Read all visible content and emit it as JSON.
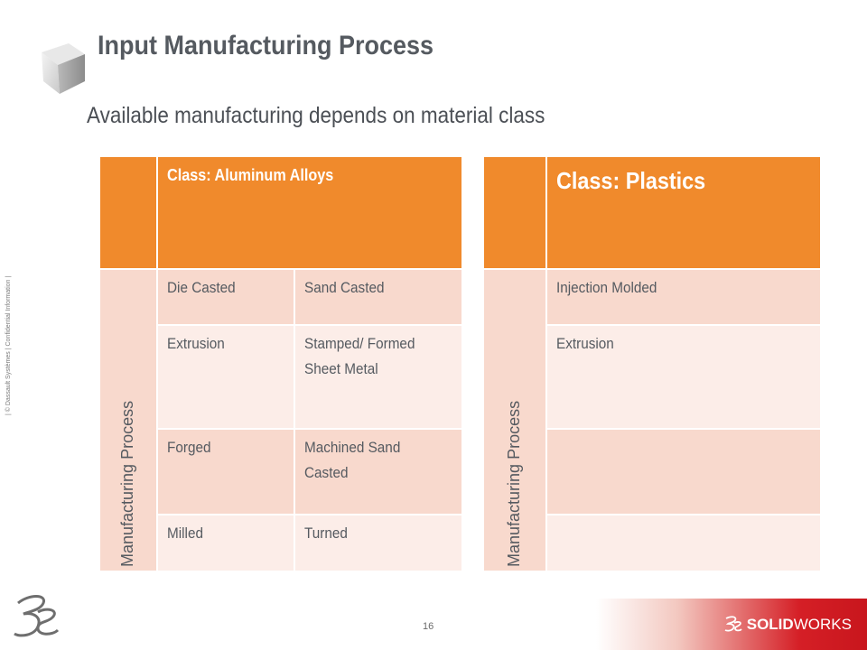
{
  "header": {
    "title": "Input Manufacturing Process",
    "subtitle": "Available manufacturing depends on material class"
  },
  "sidebar_note": "| © Dassault Systèmes | Confidential Information |",
  "tables": [
    {
      "class_label": "Class: Aluminum Alloys",
      "row_header": "Manufacturing Process",
      "rows": [
        [
          "Die Casted",
          "Sand Casted"
        ],
        [
          "Extrusion",
          "Stamped/ Formed Sheet Metal"
        ],
        [
          "Forged",
          "Machined Sand Casted"
        ],
        [
          "Milled",
          "Turned"
        ]
      ]
    },
    {
      "class_label": "Class: Plastics",
      "row_header": "Manufacturing Process",
      "rows": [
        [
          "Injection Molded"
        ],
        [
          "Extrusion"
        ],
        [
          ""
        ],
        [
          ""
        ]
      ]
    }
  ],
  "footer": {
    "page_number": "16",
    "brand_prefix": "SOLID",
    "brand_suffix": "WORKS"
  },
  "colors": {
    "header_orange": "#f08a2c",
    "row_dark": "#f8d9cd",
    "row_light": "#fcede8",
    "brand_red": "#d51f26"
  }
}
